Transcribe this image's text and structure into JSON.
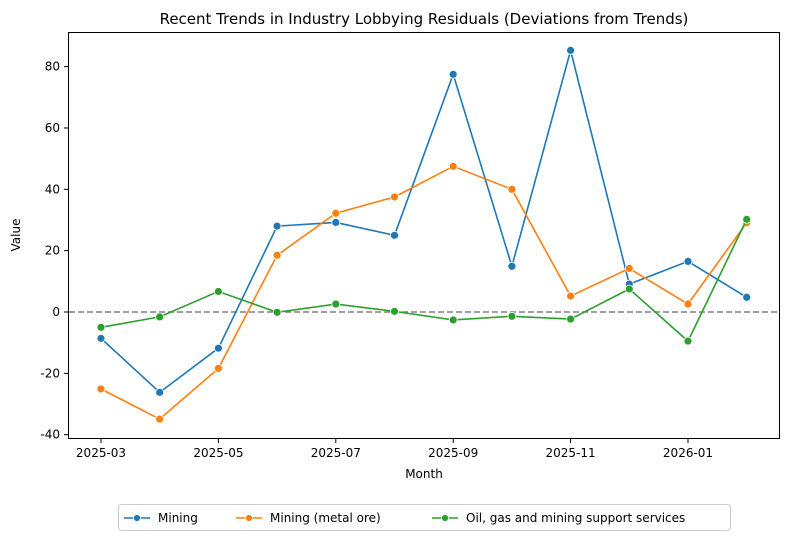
{
  "chart_data": {
    "type": "line",
    "title": "Recent Trends in Industry Lobbying Residuals (Deviations from Trends)",
    "xlabel": "Month",
    "ylabel": "Value",
    "x": [
      "2025-03",
      "2025-04",
      "2025-05",
      "2025-06",
      "2025-07",
      "2025-08",
      "2025-09",
      "2025-10",
      "2025-11",
      "2025-12",
      "2026-01",
      "2026-02"
    ],
    "xticks": [
      "2025-03",
      "2025-05",
      "2025-07",
      "2025-09",
      "2025-11",
      "2026-01"
    ],
    "yticks": [
      -40,
      -20,
      0,
      20,
      40,
      60,
      80
    ],
    "ylim": [
      -41,
      91
    ],
    "grid": false,
    "legend_placement": "bottom-center",
    "reference_line": {
      "y": 0,
      "style": "dashed",
      "color": "#808080"
    },
    "series": [
      {
        "name": "Mining",
        "color": "#1f77b4",
        "values": [
          -8.6,
          -26.2,
          -11.8,
          28.0,
          29.2,
          25.0,
          77.5,
          14.9,
          85.3,
          9.1,
          16.5,
          4.8
        ]
      },
      {
        "name": "Mining (metal ore)",
        "color": "#ff7f0e",
        "values": [
          -25.1,
          -34.9,
          -18.4,
          18.5,
          32.2,
          37.5,
          47.5,
          40.0,
          5.2,
          14.2,
          2.6,
          29.1
        ]
      },
      {
        "name": "Oil, gas and mining support services",
        "color": "#2ca02c",
        "values": [
          -5.0,
          -1.6,
          6.7,
          -0.1,
          2.6,
          0.2,
          -2.6,
          -1.4,
          -2.3,
          7.5,
          -9.5,
          30.2
        ]
      }
    ]
  }
}
